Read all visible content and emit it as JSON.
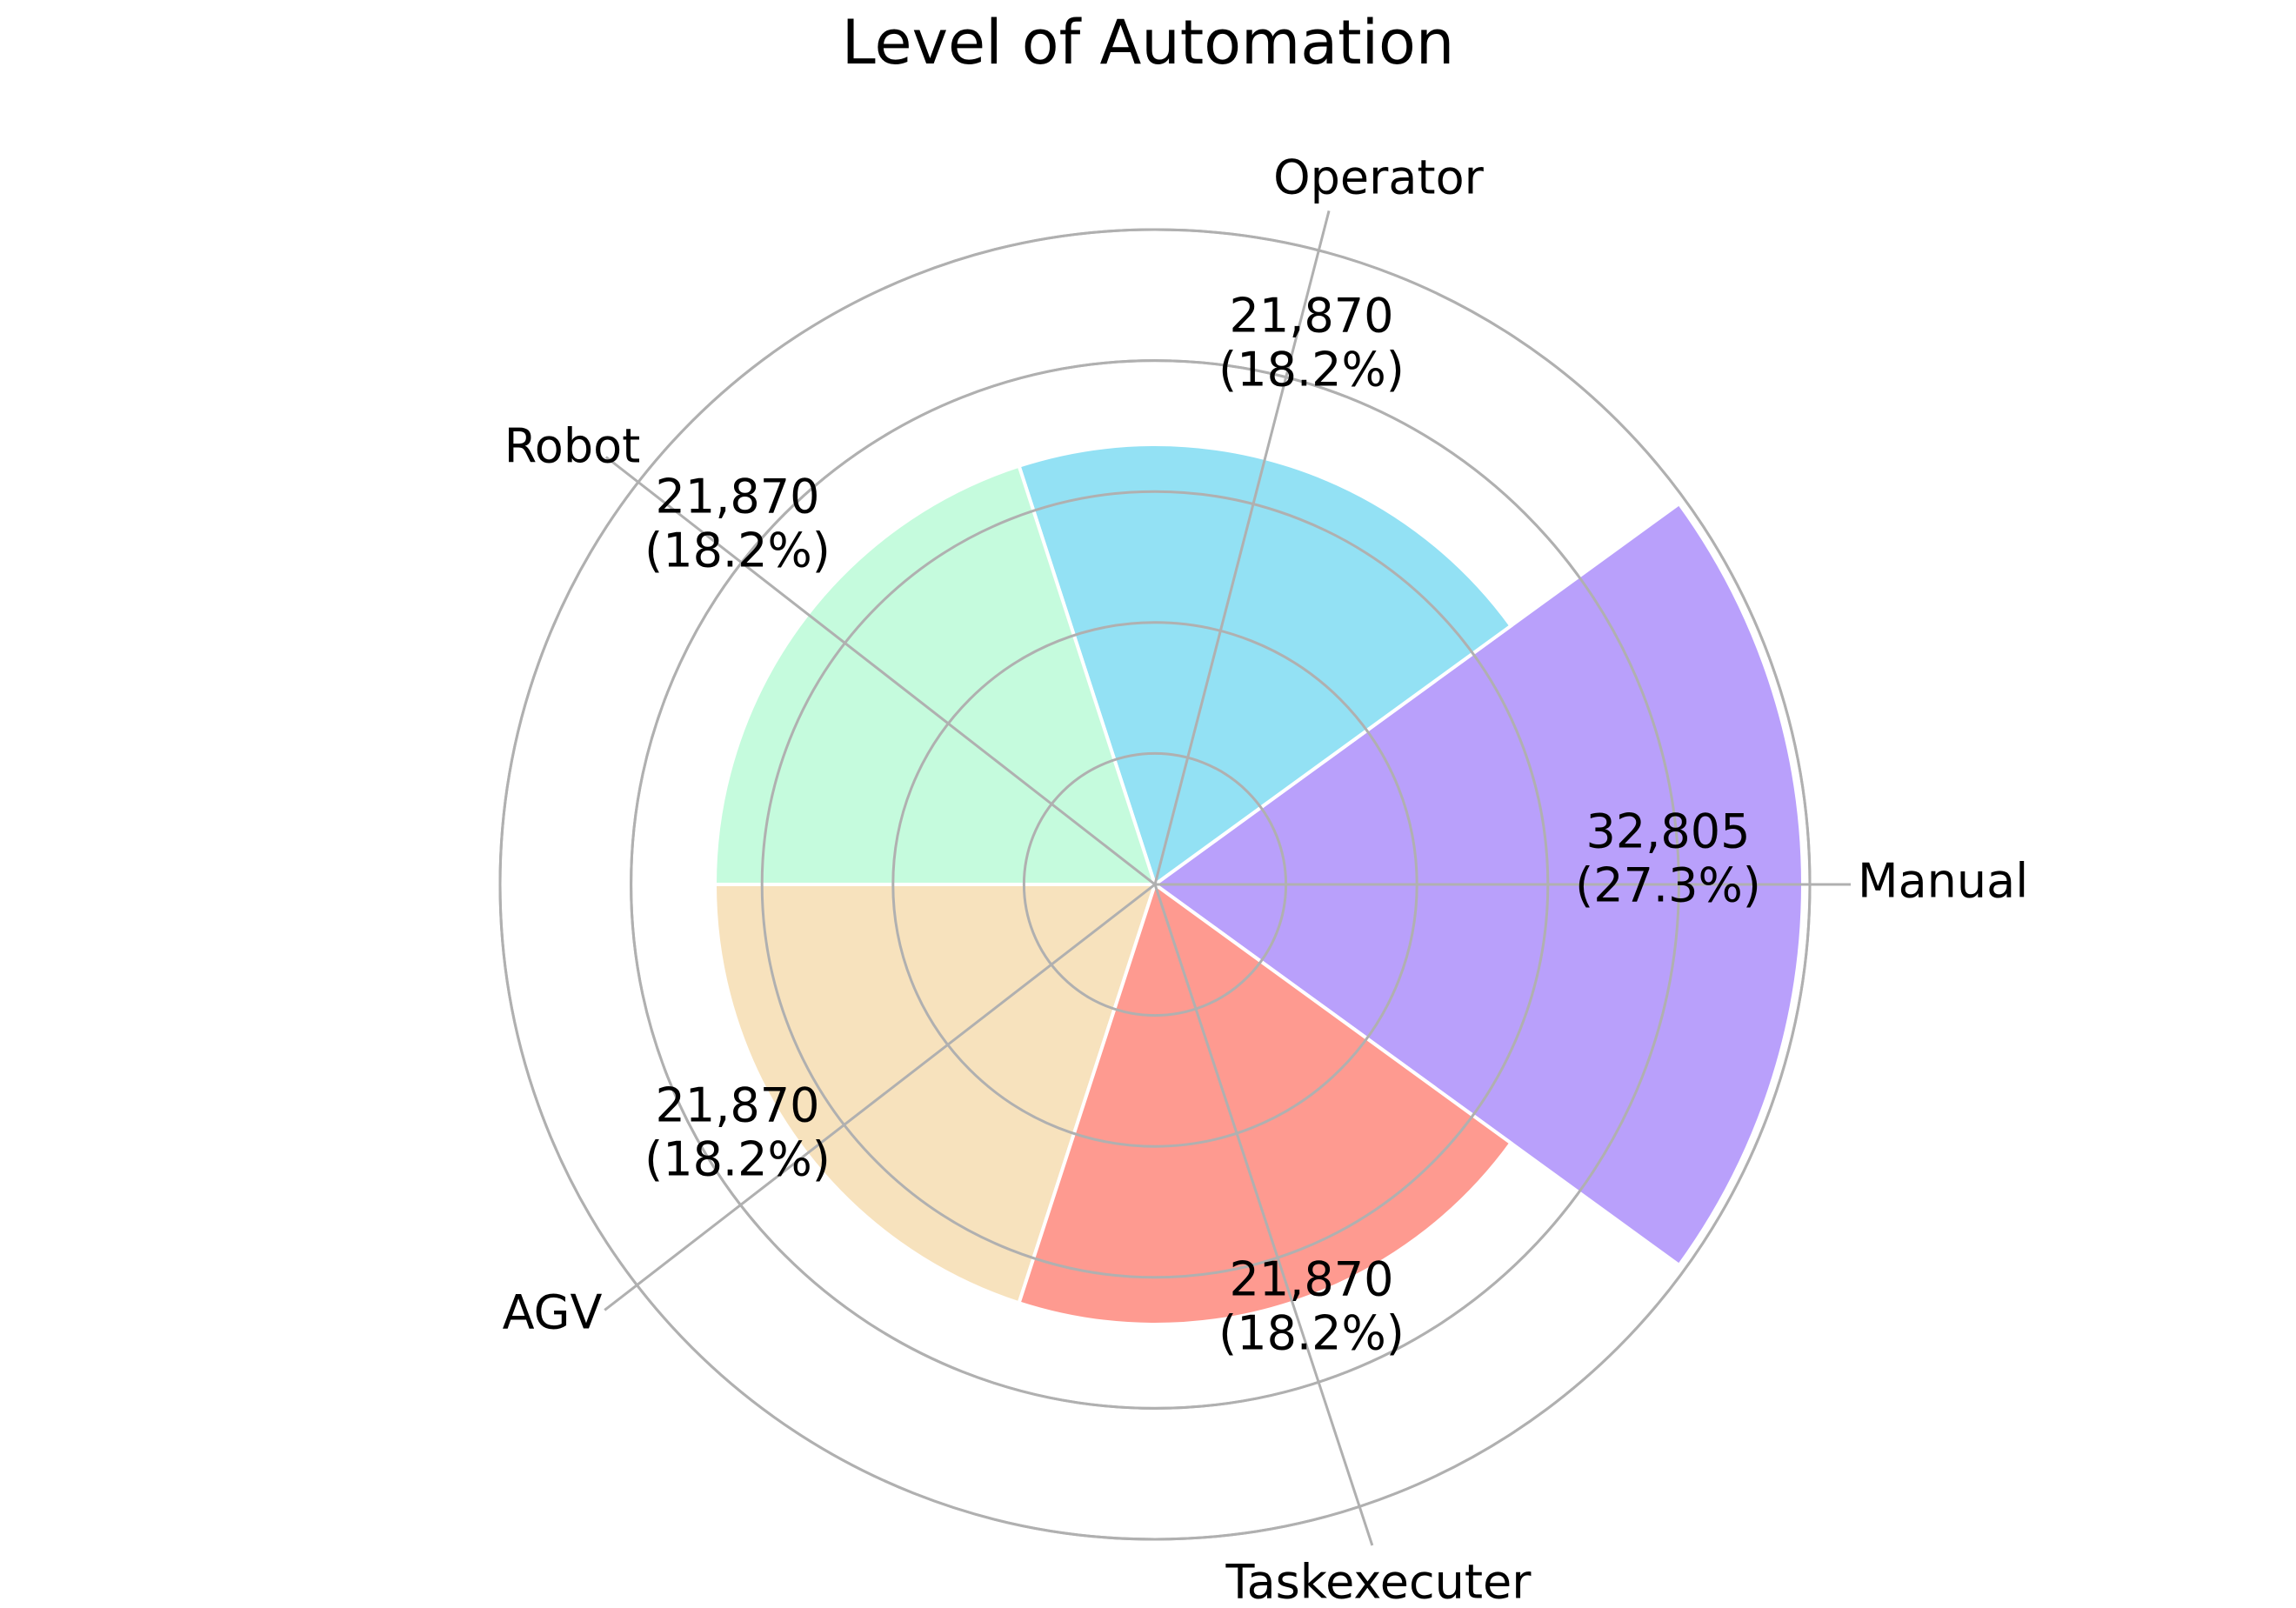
{
  "chart_data": {
    "type": "polar-area",
    "title": "Level of Automation",
    "categories": [
      "Manual",
      "Operator",
      "Robot",
      "AGV",
      "Taskexecuter"
    ],
    "values": [
      32805,
      21870,
      21870,
      21870,
      21870
    ],
    "value_labels": [
      "32,805",
      "21,870",
      "21,870",
      "21,870",
      "21,870"
    ],
    "percent_labels": [
      "(27.3%)",
      "(18.2%)",
      "(18.2%)",
      "(18.2%)",
      "(18.2%)"
    ],
    "colors": [
      "#b9a0fb",
      "#93e1f4",
      "#c5fbdd",
      "#f7e2bd",
      "#fe9a90"
    ],
    "grid": true,
    "grid_color": "#b0b0b0"
  }
}
